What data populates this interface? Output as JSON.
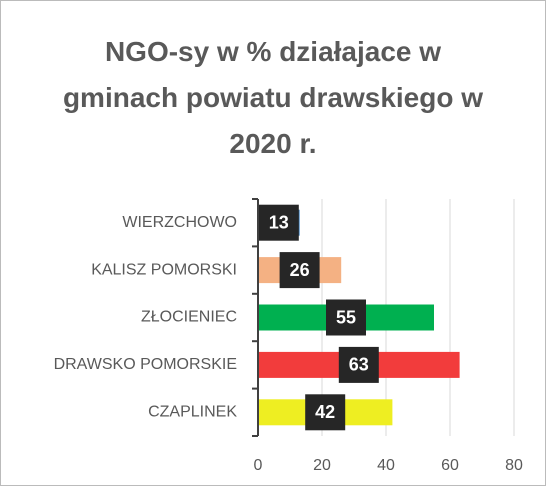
{
  "chart_data": {
    "type": "hbar",
    "title": "NGO-sy w % działajace w gminach powiatu drawskiego w 2020 r.",
    "categories": [
      "WIERZCHOWO",
      "KALISZ POMORSKI",
      "ZŁOCIENIEC",
      "DRAWSKO POMORSKIE",
      "CZAPLINEK"
    ],
    "values": [
      13,
      26,
      55,
      63,
      42
    ],
    "colors": [
      "#2e75b6",
      "#f4b183",
      "#00b050",
      "#f23c3c",
      "#eeee22"
    ],
    "xlim": [
      0,
      80
    ],
    "xticks": [
      0,
      20,
      40,
      60,
      80
    ],
    "grid": true
  }
}
